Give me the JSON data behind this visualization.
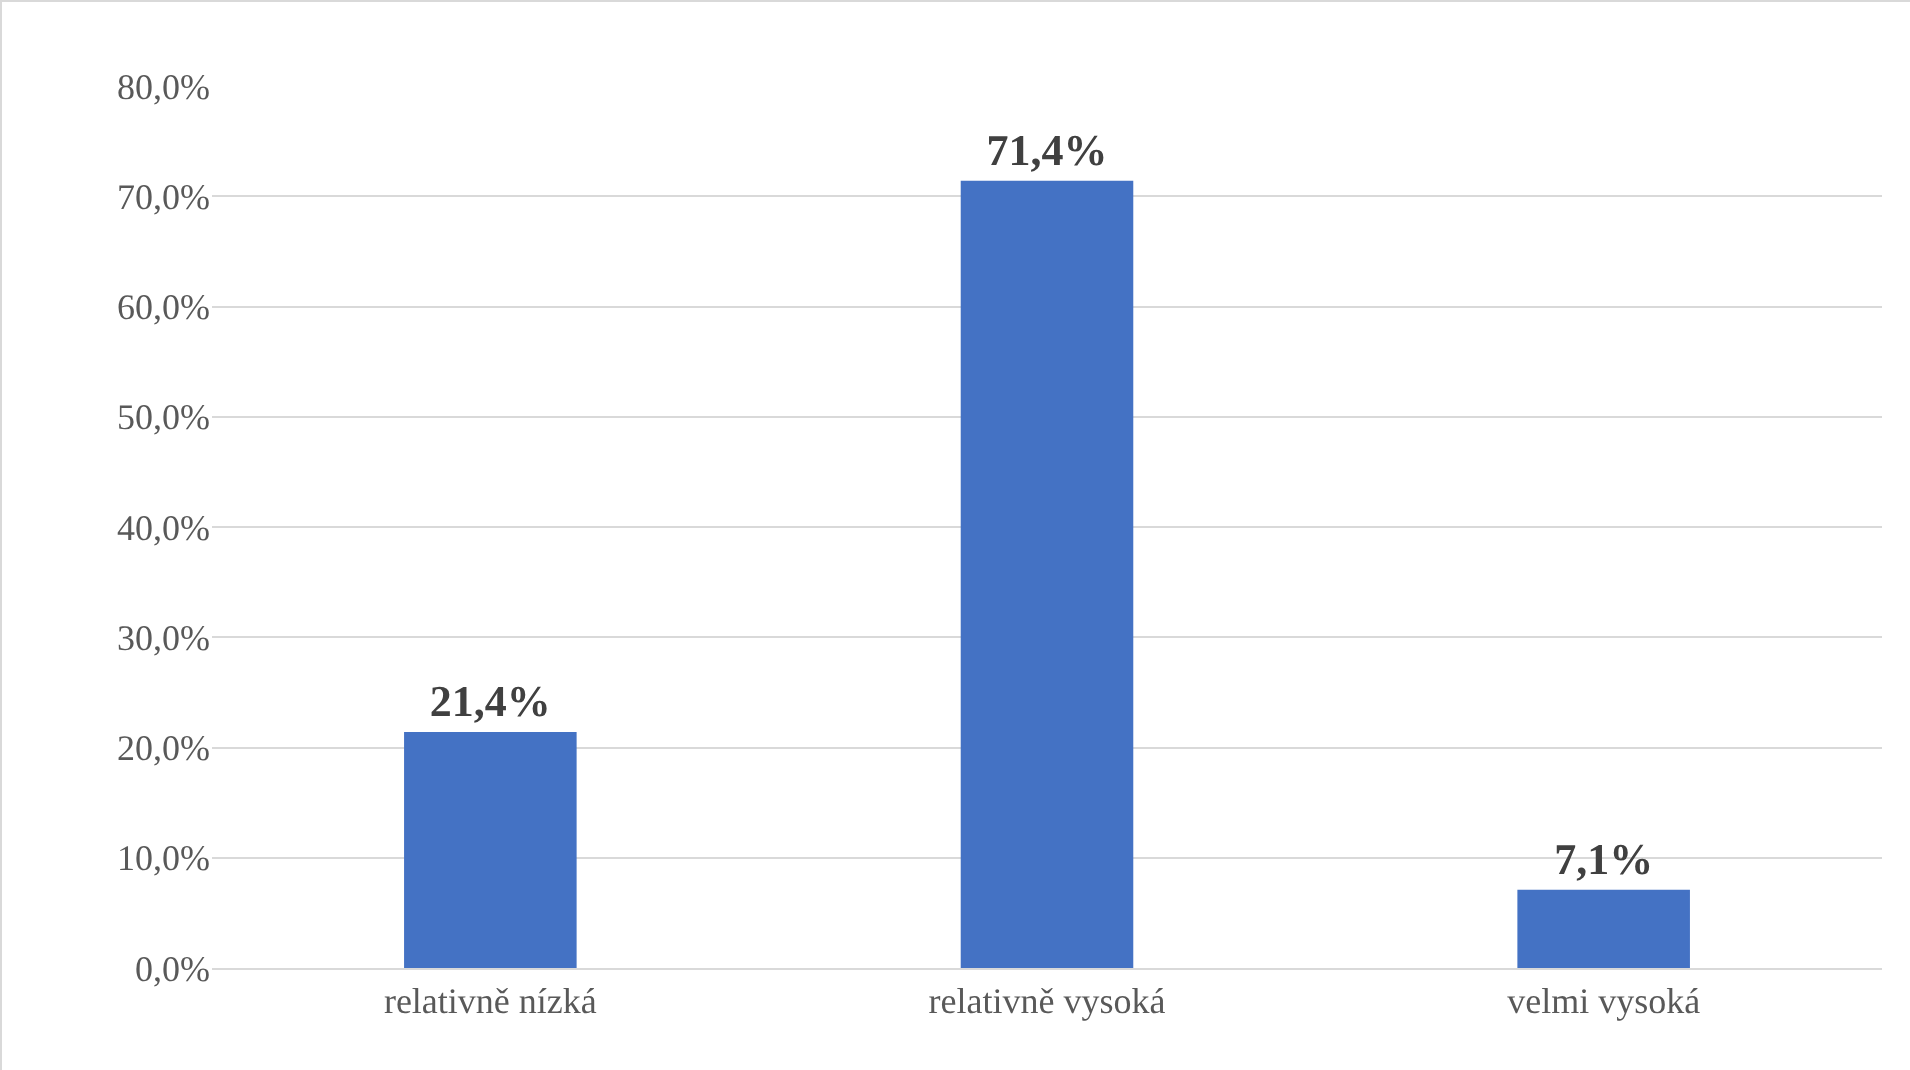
{
  "chart_data": {
    "type": "bar",
    "categories": [
      "relativně nízká",
      "relativně vysoká",
      "velmi vysoká"
    ],
    "values": [
      21.4,
      71.4,
      7.1
    ],
    "value_labels": [
      "21,4%",
      "71,4%",
      "7,1%"
    ],
    "color": "#4472c4",
    "ylim": [
      0,
      80
    ],
    "yticks": [
      {
        "value": 0,
        "label": "0,0%"
      },
      {
        "value": 10,
        "label": "10,0%"
      },
      {
        "value": 20,
        "label": "20,0%"
      },
      {
        "value": 30,
        "label": "30,0%"
      },
      {
        "value": 40,
        "label": "40,0%"
      },
      {
        "value": 50,
        "label": "50,0%"
      },
      {
        "value": 60,
        "label": "60,0%"
      },
      {
        "value": 70,
        "label": "70,0%"
      },
      {
        "value": 80,
        "label": "80,0%"
      }
    ],
    "grid": "y"
  }
}
